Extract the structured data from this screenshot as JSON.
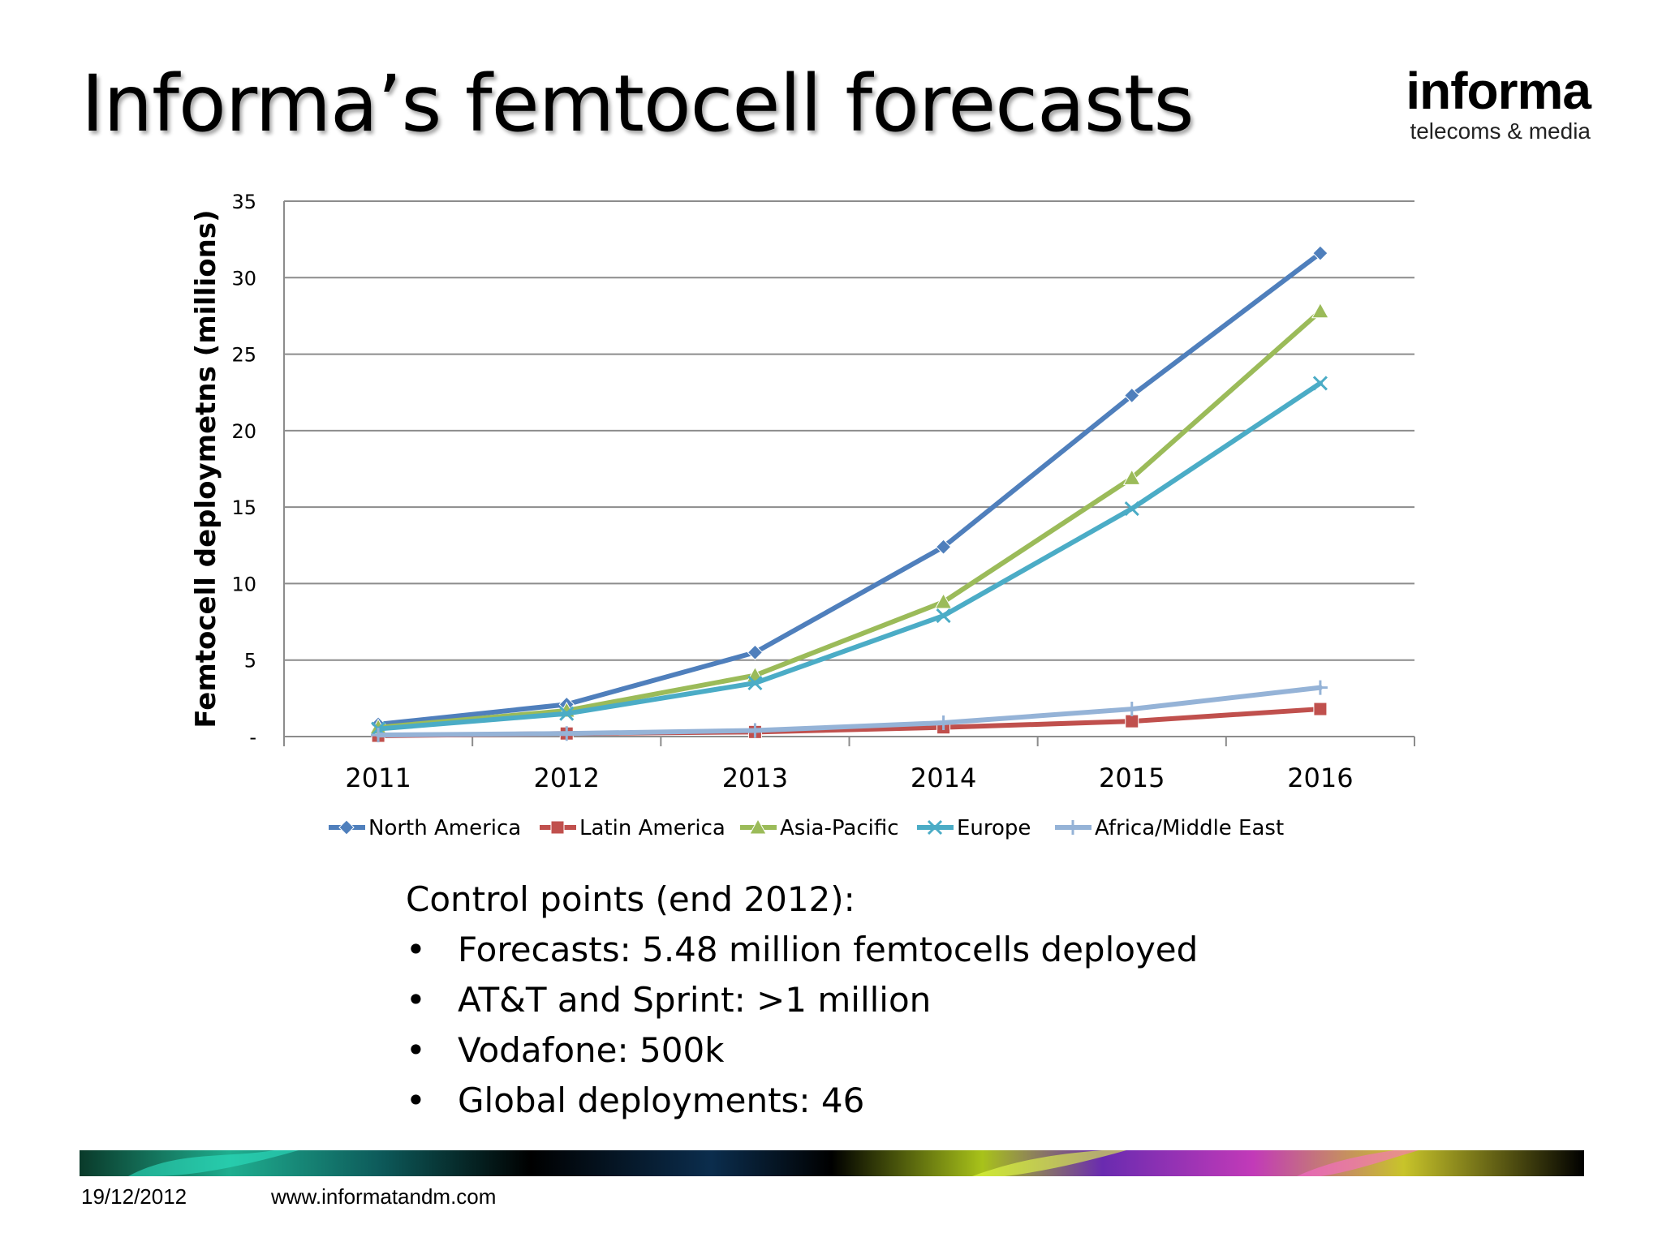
{
  "slide": {
    "title": "Informa’s femtocell forecasts",
    "logo_main": "informa",
    "logo_sub": "telecoms & media",
    "footer_date": "19/12/2012",
    "footer_url": "www.informatandm.com"
  },
  "bullets": {
    "heading": "Control points (end 2012):",
    "bullet_char": "•",
    "items": [
      "Forecasts: 5.48 million femtocells deployed",
      "AT&T and Sprint: >1 million",
      "Vodafone: 500k",
      "Global deployments: 46"
    ]
  },
  "chart_data": {
    "type": "line",
    "title": "",
    "xlabel": "",
    "ylabel": "Femtocell deploymetns (millions)",
    "categories": [
      "2011",
      "2012",
      "2013",
      "2014",
      "2015",
      "2016"
    ],
    "ylim": [
      0,
      35
    ],
    "yticks": [
      0,
      5,
      10,
      15,
      20,
      25,
      30,
      35
    ],
    "ytick_labels": [
      "-",
      "5",
      "10",
      "15",
      "20",
      "25",
      "30",
      "35"
    ],
    "grid": true,
    "legend_position": "bottom",
    "series": [
      {
        "name": "North America",
        "values": [
          0.8,
          2.1,
          5.5,
          12.4,
          22.3,
          31.6
        ],
        "color": "#4f7fbc",
        "marker": "diamond"
      },
      {
        "name": "Latin America",
        "values": [
          0.05,
          0.2,
          0.3,
          0.6,
          1.0,
          1.8
        ],
        "color": "#c0504d",
        "marker": "square"
      },
      {
        "name": "Asia-Pacific",
        "values": [
          0.6,
          1.7,
          4.0,
          8.8,
          16.9,
          27.8
        ],
        "color": "#9bbb59",
        "marker": "triangle"
      },
      {
        "name": "Europe",
        "values": [
          0.5,
          1.5,
          3.5,
          7.9,
          14.9,
          23.1
        ],
        "color": "#4bacc6",
        "marker": "x"
      },
      {
        "name": "Africa/Middle East",
        "values": [
          0.1,
          0.2,
          0.4,
          0.9,
          1.8,
          3.2
        ],
        "color": "#95b3d7",
        "marker": "plus"
      }
    ]
  }
}
